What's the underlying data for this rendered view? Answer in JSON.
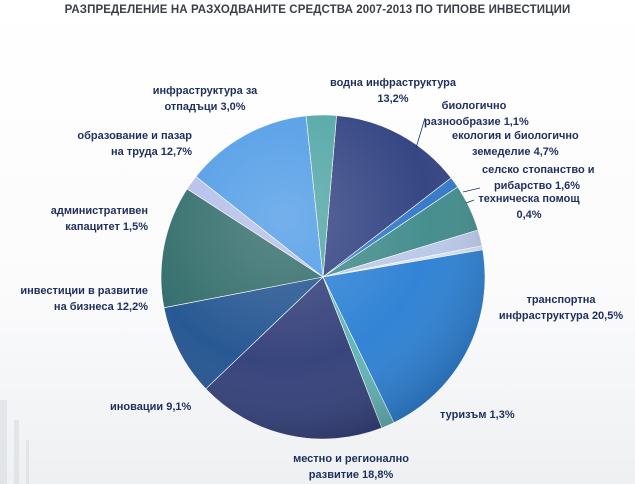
{
  "chart_data": {
    "type": "pie",
    "title": "РАЗПРЕДЕЛЕНИЕ НА РАЗХОДВАНИТЕ СРЕДСТВА 2007-2013  ПО ТИПОВЕ ИНВЕСТИЦИИ",
    "slices": [
      {
        "label": "водна инфраструктура 13,2%",
        "value": 13.2,
        "color": "#2e3f7f"
      },
      {
        "label": "биологично разнообразие 1,1%",
        "value": 1.1,
        "color": "#2f76c7"
      },
      {
        "label": "екология и биологично земеделие 4,7%",
        "value": 4.7,
        "color": "#3f8a8a"
      },
      {
        "label": "селско стопанство и рибарство 1,6%",
        "value": 1.6,
        "color": "#b9c7e8"
      },
      {
        "label": "техническа помощ 0,4%",
        "value": 0.4,
        "color": "#d5e1f0"
      },
      {
        "label": "транспортна инфраструктура 20,5%",
        "value": 20.5,
        "color": "#2a7fd4"
      },
      {
        "label": "туризъм 1,3%",
        "value": 1.3,
        "color": "#5fb2b5"
      },
      {
        "label": "местно и регионално развитие 18,8%",
        "value": 18.8,
        "color": "#303d78"
      },
      {
        "label": "иновации 9,1%",
        "value": 9.1,
        "color": "#20528f"
      },
      {
        "label": "инвестиции в развитие на бизнеса 12,2%",
        "value": 12.2,
        "color": "#2e6a68"
      },
      {
        "label": "административен капацитет 1,5%",
        "value": 1.5,
        "color": "#b3bde8"
      },
      {
        "label": "образование и пазар на труда 12,7%",
        "value": 12.7,
        "color": "#4d9ae6"
      },
      {
        "label": "инфраструктура за отпадъци 3,0%",
        "value": 3.0,
        "color": "#4fa4a4"
      }
    ],
    "labels": {
      "vodna": [
        "водна инфраструктура",
        "13,2%"
      ],
      "bio": [
        "биологично",
        "разнообразие 1,1%"
      ],
      "eko": [
        "екология и биологично",
        "земеделие 4,7%"
      ],
      "selsko": [
        "селско стопанство и",
        "рибарство 1,6%"
      ],
      "teh": [
        "техническа помощ",
        "0,4%"
      ],
      "transport": [
        "транспортна",
        "инфраструктура 20,5%"
      ],
      "turizam": [
        "туризъм 1,3%"
      ],
      "mestno": [
        "местно и регионално",
        "развитие 18,8%"
      ],
      "inovacii": [
        "иновации 9,1%"
      ],
      "biznes": [
        "инвестиции в развитие",
        "на бизнеса 12,2%"
      ],
      "admin": [
        "административен",
        "капацитет 1,5%"
      ],
      "obrazovanie": [
        "образование и пазар",
        "на труда 12,7%"
      ],
      "otpadaci": [
        "инфраструктура за",
        "отпадъци 3,0%"
      ]
    },
    "legend": "none",
    "grid": false
  }
}
